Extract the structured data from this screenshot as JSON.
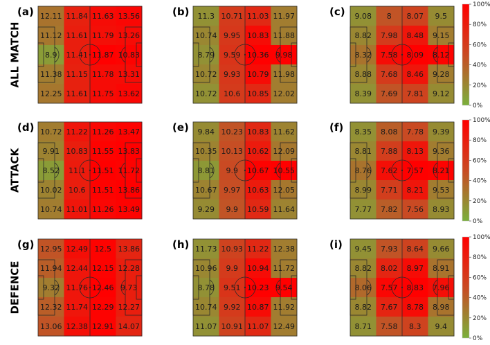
{
  "chart_data": {
    "type": "heatmap",
    "rows": [
      "ALL MATCH",
      "ATTACK",
      "DEFENCE"
    ],
    "colorbar": {
      "ticks": [
        "100%",
        "80%",
        "60%",
        "40%",
        "20%",
        "0%"
      ],
      "colors": {
        "low": "#7ab03c",
        "mid": "#c94a23",
        "high": "#ff0000"
      }
    },
    "panels": [
      {
        "label": "(a)",
        "values": [
          [
            12.11,
            11.84,
            11.63,
            13.56
          ],
          [
            11.12,
            11.61,
            11.79,
            13.26
          ],
          [
            8.9,
            11.41,
            11.87,
            10.83
          ],
          [
            11.38,
            11.15,
            11.78,
            13.31
          ],
          [
            12.25,
            11.61,
            11.75,
            13.62
          ]
        ],
        "levels": [
          [
            0.3,
            0.78,
            0.92,
            0.95
          ],
          [
            0.28,
            0.8,
            0.9,
            0.92
          ],
          [
            0.1,
            0.8,
            1.0,
            0.98
          ],
          [
            0.25,
            0.78,
            0.92,
            0.92
          ],
          [
            0.28,
            0.78,
            0.92,
            0.95
          ]
        ]
      },
      {
        "label": "(b)",
        "values": [
          [
            11.3,
            10.71,
            11.03,
            11.97
          ],
          [
            10.74,
            9.95,
            10.83,
            11.88
          ],
          [
            8.79,
            9.59,
            10.36,
            9.98
          ],
          [
            10.72,
            9.93,
            10.79,
            11.98
          ],
          [
            10.72,
            10.6,
            10.85,
            12.02
          ]
        ],
        "levels": [
          [
            0.15,
            0.6,
            0.72,
            0.25
          ],
          [
            0.2,
            0.62,
            0.92,
            0.25
          ],
          [
            0.15,
            0.65,
            1.0,
            1.0
          ],
          [
            0.2,
            0.62,
            0.92,
            0.25
          ],
          [
            0.15,
            0.6,
            0.72,
            0.25
          ]
        ]
      },
      {
        "label": "(c)",
        "values": [
          [
            9.08,
            8.0,
            8.07,
            9.5
          ],
          [
            8.82,
            7.98,
            8.48,
            9.15
          ],
          [
            8.32,
            7.58,
            8.09,
            8.12
          ],
          [
            8.88,
            7.68,
            8.46,
            9.28
          ],
          [
            8.39,
            7.69,
            7.81,
            9.12
          ]
        ],
        "levels": [
          [
            0.15,
            0.45,
            0.55,
            0.18
          ],
          [
            0.2,
            0.6,
            0.85,
            0.25
          ],
          [
            0.3,
            0.92,
            1.0,
            0.98
          ],
          [
            0.2,
            0.6,
            0.85,
            0.25
          ],
          [
            0.15,
            0.45,
            0.55,
            0.18
          ]
        ]
      },
      {
        "label": "(d)",
        "values": [
          [
            10.72,
            11.22,
            11.26,
            13.47
          ],
          [
            9.91,
            10.83,
            11.55,
            13.83
          ],
          [
            8.52,
            11.1,
            11.51,
            11.72
          ],
          [
            10.02,
            10.6,
            11.51,
            13.86
          ],
          [
            10.74,
            11.01,
            11.26,
            13.49
          ]
        ],
        "levels": [
          [
            0.25,
            0.85,
            0.95,
            0.98
          ],
          [
            0.22,
            0.8,
            0.98,
            1.0
          ],
          [
            0.1,
            0.82,
            1.0,
            0.98
          ],
          [
            0.22,
            0.8,
            0.98,
            1.0
          ],
          [
            0.25,
            0.85,
            0.95,
            0.98
          ]
        ]
      },
      {
        "label": "(e)",
        "values": [
          [
            9.84,
            10.23,
            10.83,
            11.62
          ],
          [
            10.35,
            10.13,
            10.62,
            12.09
          ],
          [
            8.81,
            9.9,
            10.67,
            10.55
          ],
          [
            10.67,
            9.97,
            10.63,
            12.05
          ],
          [
            9.29,
            9.9,
            10.59,
            11.64
          ]
        ],
        "levels": [
          [
            0.18,
            0.45,
            0.72,
            0.22
          ],
          [
            0.22,
            0.48,
            0.82,
            0.28
          ],
          [
            0.12,
            0.5,
            0.98,
            1.0
          ],
          [
            0.22,
            0.48,
            0.82,
            0.28
          ],
          [
            0.18,
            0.45,
            0.72,
            0.22
          ]
        ]
      },
      {
        "label": "(f)",
        "values": [
          [
            8.35,
            8.08,
            7.78,
            9.39
          ],
          [
            8.81,
            7.88,
            8.13,
            9.36
          ],
          [
            8.76,
            7.62,
            7.57,
            8.21
          ],
          [
            8.99,
            7.71,
            8.21,
            9.53
          ],
          [
            7.77,
            7.82,
            7.56,
            8.93
          ]
        ],
        "levels": [
          [
            0.15,
            0.4,
            0.5,
            0.18
          ],
          [
            0.2,
            0.58,
            0.85,
            0.25
          ],
          [
            0.3,
            0.9,
            1.0,
            0.98
          ],
          [
            0.2,
            0.58,
            0.85,
            0.25
          ],
          [
            0.15,
            0.4,
            0.5,
            0.18
          ]
        ]
      },
      {
        "label": "(g)",
        "values": [
          [
            12.95,
            12.49,
            12.5,
            13.86
          ],
          [
            11.94,
            12.44,
            12.15,
            12.28
          ],
          [
            9.32,
            11.76,
            12.46,
            9.73
          ],
          [
            12.32,
            11.74,
            12.29,
            12.27
          ],
          [
            13.06,
            12.38,
            12.91,
            14.07
          ]
        ],
        "levels": [
          [
            0.45,
            0.9,
            0.98,
            0.75
          ],
          [
            0.4,
            0.85,
            0.98,
            0.8
          ],
          [
            0.25,
            0.85,
            1.0,
            0.8
          ],
          [
            0.4,
            0.85,
            0.98,
            0.8
          ],
          [
            0.45,
            0.9,
            0.98,
            0.75
          ]
        ]
      },
      {
        "label": "(h)",
        "values": [
          [
            11.73,
            10.93,
            11.22,
            12.38
          ],
          [
            10.96,
            9.9,
            10.94,
            11.72
          ],
          [
            8.78,
            9.51,
            10.23,
            9.54
          ],
          [
            10.74,
            9.92,
            10.87,
            11.92
          ],
          [
            11.07,
            10.91,
            11.07,
            12.49
          ]
        ],
        "levels": [
          [
            0.15,
            0.55,
            0.72,
            0.25
          ],
          [
            0.2,
            0.6,
            0.92,
            0.25
          ],
          [
            0.15,
            0.65,
            1.0,
            1.0
          ],
          [
            0.2,
            0.6,
            0.92,
            0.25
          ],
          [
            0.15,
            0.55,
            0.72,
            0.25
          ]
        ]
      },
      {
        "label": "(i)",
        "values": [
          [
            9.45,
            7.93,
            8.64,
            9.66
          ],
          [
            8.82,
            8.02,
            8.97,
            8.91
          ],
          [
            8.06,
            7.57,
            8.83,
            7.96
          ],
          [
            8.82,
            7.67,
            8.78,
            8.98
          ],
          [
            8.71,
            7.58,
            8.3,
            9.4
          ]
        ],
        "levels": [
          [
            0.15,
            0.45,
            0.55,
            0.18
          ],
          [
            0.2,
            0.75,
            0.92,
            0.3
          ],
          [
            0.35,
            0.95,
            1.0,
            0.9
          ],
          [
            0.2,
            0.75,
            0.92,
            0.3
          ],
          [
            0.15,
            0.45,
            0.55,
            0.18
          ]
        ]
      }
    ]
  }
}
